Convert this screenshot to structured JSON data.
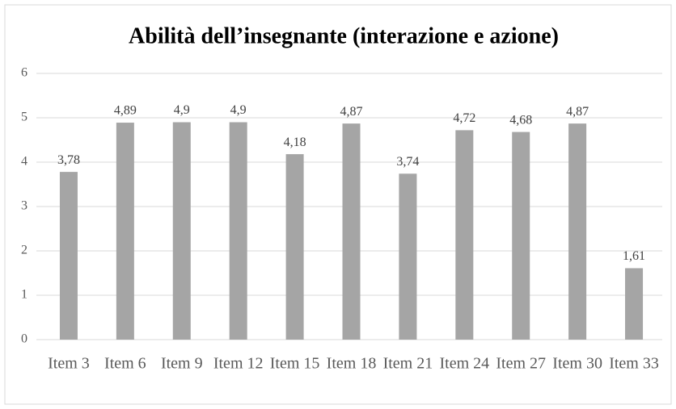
{
  "chart_data": {
    "type": "bar",
    "title": "Abilità dell’insegnante (interazione e azione)",
    "categories": [
      "Item 3",
      "Item 6",
      "Item 9",
      "Item 12",
      "Item 15",
      "Item 18",
      "Item 21",
      "Item 24",
      "Item 27",
      "Item 30",
      "Item 33"
    ],
    "values": [
      3.78,
      4.89,
      4.9,
      4.9,
      4.18,
      4.87,
      3.74,
      4.72,
      4.68,
      4.87,
      1.61
    ],
    "value_labels": [
      "3,78",
      "4,89",
      "4,9",
      "4,9",
      "4,18",
      "4,87",
      "3,74",
      "4,72",
      "4,68",
      "4,87",
      "1,61"
    ],
    "color": "#a5a5a5",
    "ylim": [
      0,
      6
    ],
    "yticks": [
      0,
      1,
      2,
      3,
      4,
      5,
      6
    ],
    "grid": true
  }
}
